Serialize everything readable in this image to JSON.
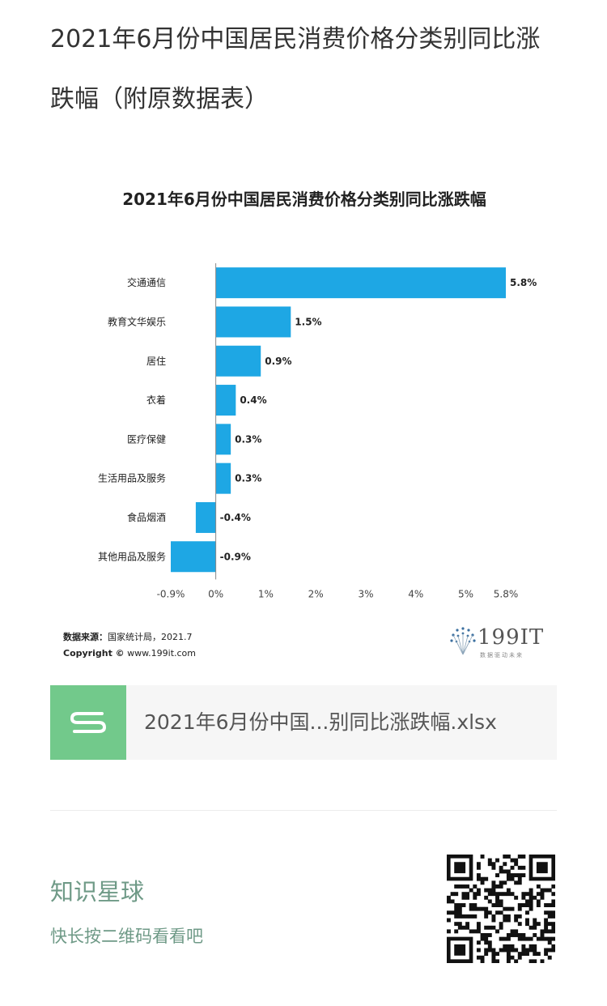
{
  "article": {
    "title": "2021年6月份中国居民消费价格分类别同比涨跌幅（附原数据表）"
  },
  "chart_data": {
    "type": "bar",
    "orientation": "horizontal",
    "title": "2021年6月份中国居民消费价格分类别同比涨跌幅",
    "categories": [
      "交通通信",
      "教育文华娱乐",
      "居住",
      "衣着",
      "医疗保健",
      "生活用品及服务",
      "食品烟酒",
      "其他用品及服务"
    ],
    "values": [
      5.8,
      1.5,
      0.9,
      0.4,
      0.3,
      0.3,
      -0.4,
      -0.9
    ],
    "value_labels": [
      "5.8%",
      "1.5%",
      "0.9%",
      "0.4%",
      "0.3%",
      "0.3%",
      "-0.4%",
      "-0.9%"
    ],
    "x_ticks": [
      -0.9,
      0,
      1,
      2,
      3,
      4,
      5,
      5.8
    ],
    "x_tick_labels": [
      "-0.9%",
      "0%",
      "1%",
      "2%",
      "3%",
      "4%",
      "5%",
      "5.8%"
    ],
    "xlim": [
      -0.9,
      5.8
    ],
    "grid": false,
    "legend": "none",
    "bar_color": "#1ea7e4"
  },
  "source": {
    "label": "数据来源：",
    "text": "国家统计局，2021.7",
    "copyright_label": "Copyright ©",
    "copyright_text": "www.199it.com"
  },
  "brand": {
    "name": "199IT",
    "tagline": "数据驱动未来"
  },
  "attachment": {
    "icon": "sheet-file-icon",
    "filename": "2021年6月份中国...别同比涨跌幅.xlsx",
    "icon_color": "#72c98b"
  },
  "promo": {
    "title": "知识星球",
    "subtitle": "快长按二维码看看吧",
    "accent": "#6f9a87"
  }
}
